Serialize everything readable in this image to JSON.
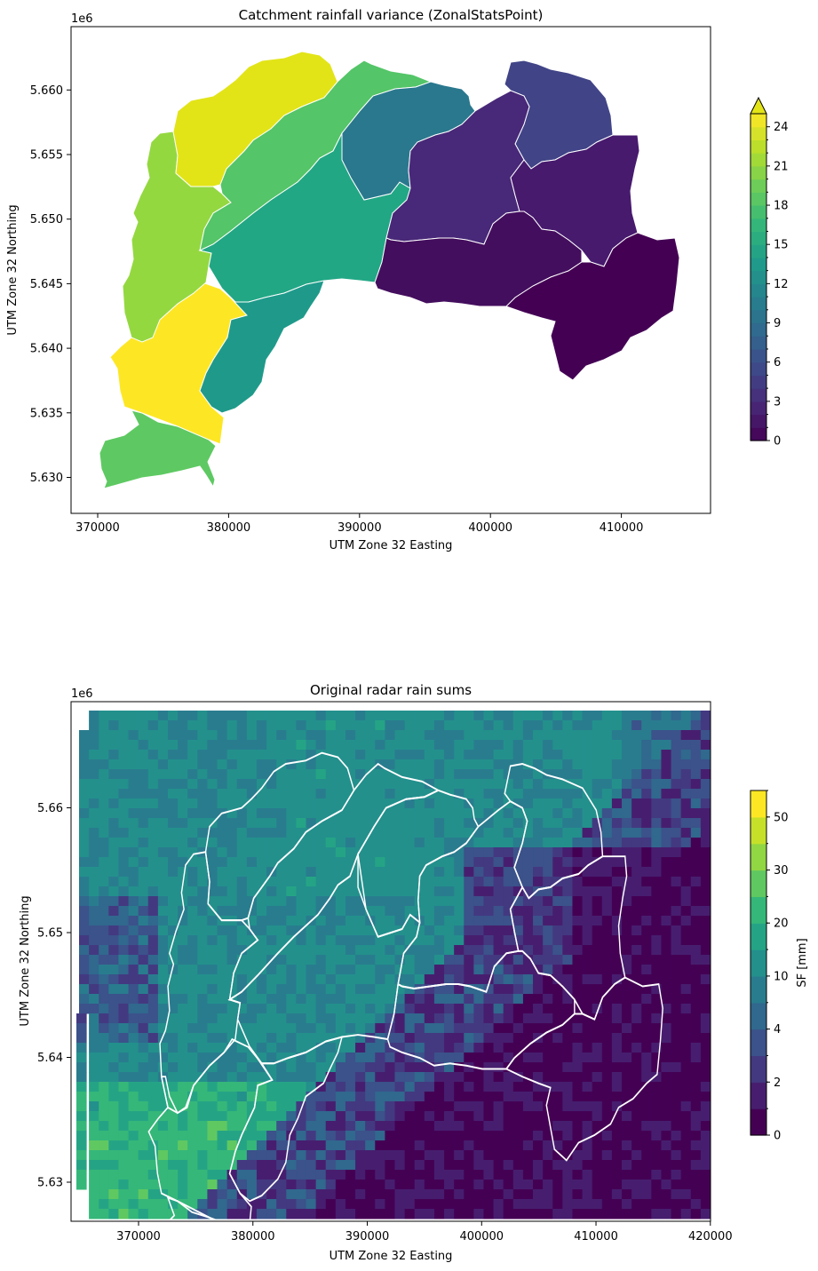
{
  "chart_data": [
    {
      "type": "choropleth",
      "title": "Catchment rainfall variance (ZonalStatsPoint)",
      "xlabel": "UTM Zone 32 Easting",
      "ylabel": "UTM Zone 32 Northing",
      "y_offset_label": "1e6",
      "x_ticks": [
        "370000",
        "380000",
        "390000",
        "400000",
        "410000"
      ],
      "y_ticks": [
        "5.630",
        "5.635",
        "5.640",
        "5.645",
        "5.650",
        "5.655",
        "5.660"
      ],
      "colorbar": {
        "ticks": [
          "0",
          "3",
          "6",
          "9",
          "12",
          "15",
          "18",
          "21",
          "24"
        ],
        "range": [
          0,
          25
        ],
        "extend": "max",
        "colormap": "viridis"
      },
      "regions": [
        {
          "id": "south-west",
          "value": 19
        },
        {
          "id": "west-lower",
          "value": 24.5
        },
        {
          "id": "west-middle",
          "value": 20.5
        },
        {
          "id": "north-west",
          "value": 24
        },
        {
          "id": "north-central",
          "value": 19
        },
        {
          "id": "central",
          "value": 15
        },
        {
          "id": "south-central",
          "value": 13
        },
        {
          "id": "north-east-central",
          "value": 11
        },
        {
          "id": "north-east",
          "value": 6
        },
        {
          "id": "east-central",
          "value": 3
        },
        {
          "id": "east",
          "value": 2.5
        },
        {
          "id": "south-east-central",
          "value": 1.5
        },
        {
          "id": "south-east",
          "value": 0.5
        }
      ],
      "region_colors": {
        "south-west": "#5ec962",
        "west-lower": "#fde725",
        "west-middle": "#94d840",
        "north-west": "#e2e418",
        "north-central": "#54c568",
        "central": "#22a785",
        "south-central": "#1f9a8a",
        "north-east-central": "#2a788e",
        "north-east": "#414487",
        "east-central": "#482878",
        "east": "#471a6e",
        "south-east-central": "#440e5e",
        "south-east": "#440154"
      }
    },
    {
      "type": "heatmap",
      "title": "Original radar rain sums",
      "xlabel": "UTM Zone 32 Easting",
      "ylabel": "UTM Zone 32 Northing",
      "y_offset_label": "1e6",
      "x_ticks": [
        "370000",
        "380000",
        "390000",
        "400000",
        "410000",
        "420000"
      ],
      "y_ticks": [
        "5.63",
        "5.64",
        "5.65",
        "5.66"
      ],
      "colorbar": {
        "label": "SF [mm]",
        "ticks": [
          "0",
          "2",
          "4",
          "10",
          "20",
          "30",
          "50"
        ],
        "levels": [
          0,
          1,
          2,
          3,
          4,
          5,
          10,
          15,
          20,
          25,
          30,
          40,
          50,
          55
        ],
        "colormap": "viridis"
      }
    }
  ]
}
